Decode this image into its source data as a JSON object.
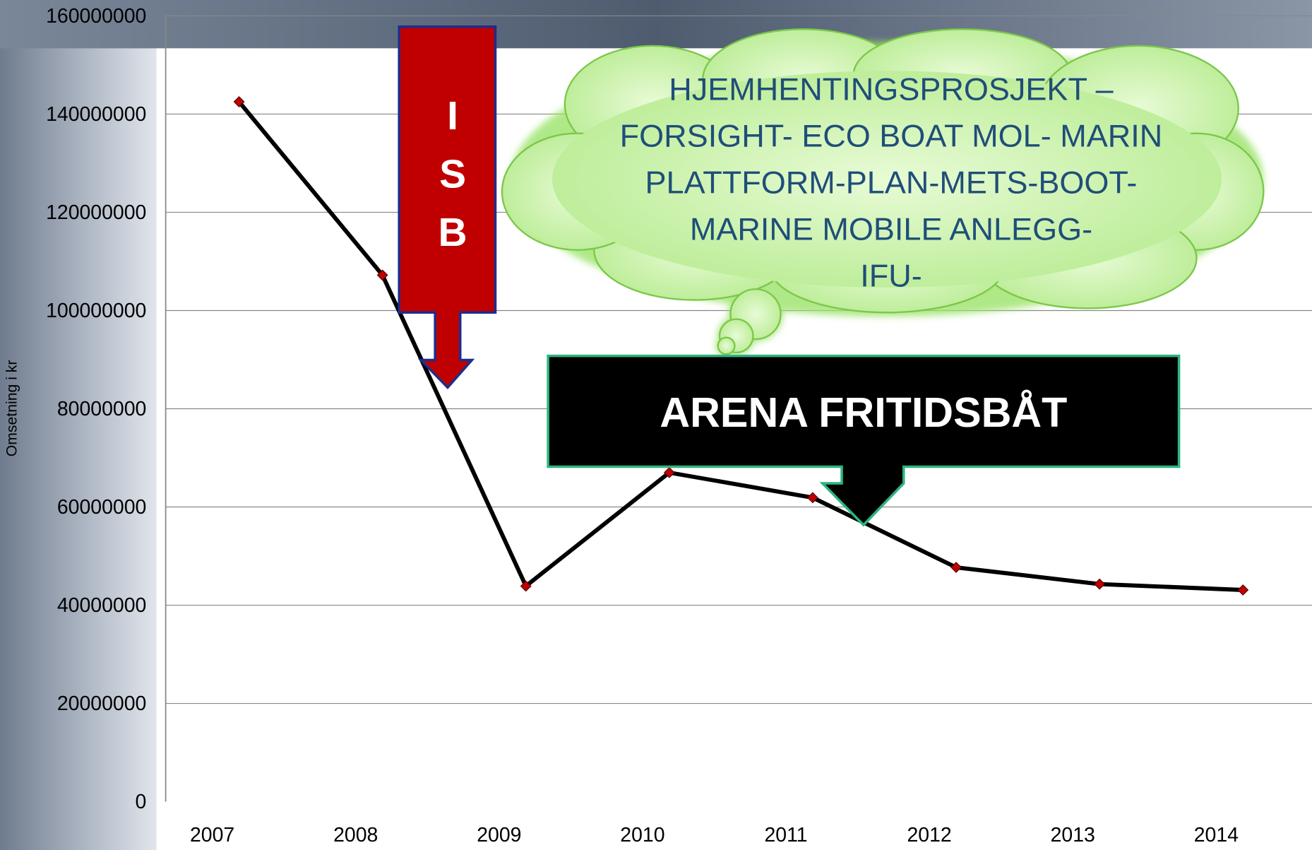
{
  "chart_data": {
    "type": "line",
    "y_label": "Omsetning i kr",
    "categories": [
      "2007",
      "2008",
      "2009",
      "2010",
      "2011",
      "2012",
      "2013",
      "2014"
    ],
    "values": [
      142500000,
      107200000,
      43900000,
      67000000,
      61900000,
      47700000,
      44300000,
      43100000
    ],
    "color": "#000000",
    "marker_color": "#c00000",
    "ylim": [
      0,
      160000000
    ],
    "yticks": [
      0,
      20000000,
      40000000,
      60000000,
      80000000,
      100000000,
      120000000,
      140000000,
      160000000
    ],
    "grid": true,
    "annotations": {
      "isb": [
        "I",
        "S",
        "B"
      ],
      "cloud": [
        "HJEMHENTINGSPROSJEKT –",
        "FORSIGHT- ECO BOAT MOL- MARIN",
        "PLATTFORM-PLAN-METS-BOOT-",
        "MARINE MOBILE ANLEGG-",
        "IFU-"
      ],
      "arena": "ARENA FRITIDSBÅT"
    }
  }
}
